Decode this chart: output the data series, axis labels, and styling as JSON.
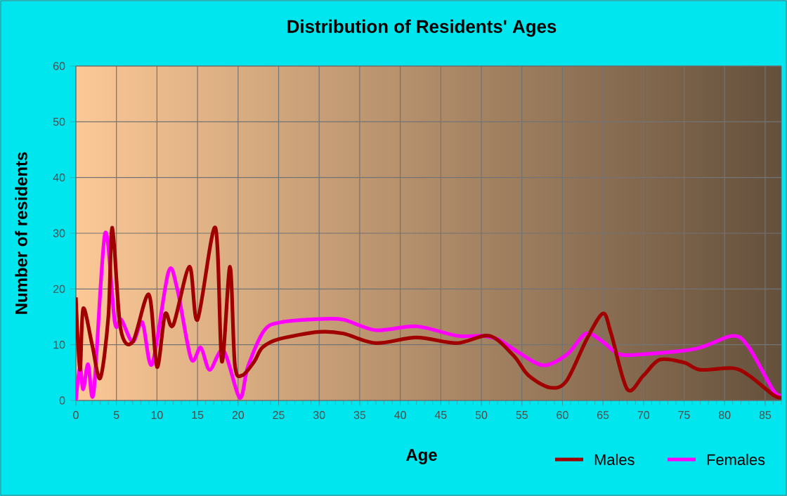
{
  "chart_data": {
    "type": "line",
    "title": "Distribution of Residents' Ages",
    "xlabel": "Age",
    "ylabel": "Number of residents",
    "xlim": [
      0,
      87
    ],
    "ylim": [
      0,
      60
    ],
    "xticks": [
      0,
      5,
      10,
      15,
      20,
      25,
      30,
      35,
      40,
      45,
      50,
      55,
      60,
      65,
      70,
      75,
      80,
      85
    ],
    "yticks": [
      0,
      10,
      20,
      30,
      40,
      50,
      60
    ],
    "grid": true,
    "legend": "bottom right",
    "series": [
      {
        "name": "Males",
        "color": "#a00000",
        "x": [
          0,
          0.5,
          0.9,
          2,
          3,
          4,
          4.5,
          5.5,
          7,
          9,
          10,
          11,
          12,
          14,
          15,
          17.2,
          18,
          19,
          19.6,
          20.5,
          22,
          23,
          25,
          30,
          33,
          37,
          42,
          47,
          51,
          54,
          55.8,
          58.5,
          60.5,
          63,
          65,
          66,
          68,
          70,
          72,
          75,
          77,
          81,
          83,
          86,
          87
        ],
        "values": [
          18.5,
          5.5,
          16.5,
          10,
          4,
          15,
          31,
          13,
          10.5,
          19,
          6,
          15.5,
          13.5,
          24,
          14.5,
          31,
          7,
          24,
          6.5,
          4.5,
          7,
          9.5,
          11,
          12.3,
          12,
          10.3,
          11.3,
          10.3,
          11.6,
          8,
          4.5,
          2.3,
          3.5,
          11,
          15.6,
          12,
          2,
          4.5,
          7.3,
          6.8,
          5.5,
          5.8,
          4.5,
          1,
          0.5
        ]
      },
      {
        "name": "Females",
        "color": "#ff00ff",
        "x": [
          0,
          0.5,
          0.9,
          1.5,
          2.2,
          3.6,
          4.8,
          5.6,
          7,
          8.2,
          9.4,
          11.4,
          12.5,
          14.2,
          15.4,
          16.5,
          18.2,
          20.2,
          21.2,
          23.2,
          25.2,
          30,
          33,
          37,
          42,
          47,
          50,
          52,
          54.6,
          57.7,
          60.6,
          62.9,
          65,
          67,
          70,
          76.5,
          81,
          83,
          86,
          87
        ],
        "values": [
          0,
          6,
          2,
          6.5,
          1.5,
          30,
          14,
          14.5,
          10.5,
          14,
          6.5,
          23,
          20,
          7.5,
          9.5,
          5.5,
          9,
          0.5,
          6,
          12.5,
          14,
          14.6,
          14.5,
          12.6,
          13.3,
          11.6,
          11.6,
          11,
          8.6,
          6.3,
          8.3,
          12,
          10.5,
          8.3,
          8.3,
          9.3,
          11.6,
          9.5,
          1.8,
          1
        ]
      }
    ]
  }
}
